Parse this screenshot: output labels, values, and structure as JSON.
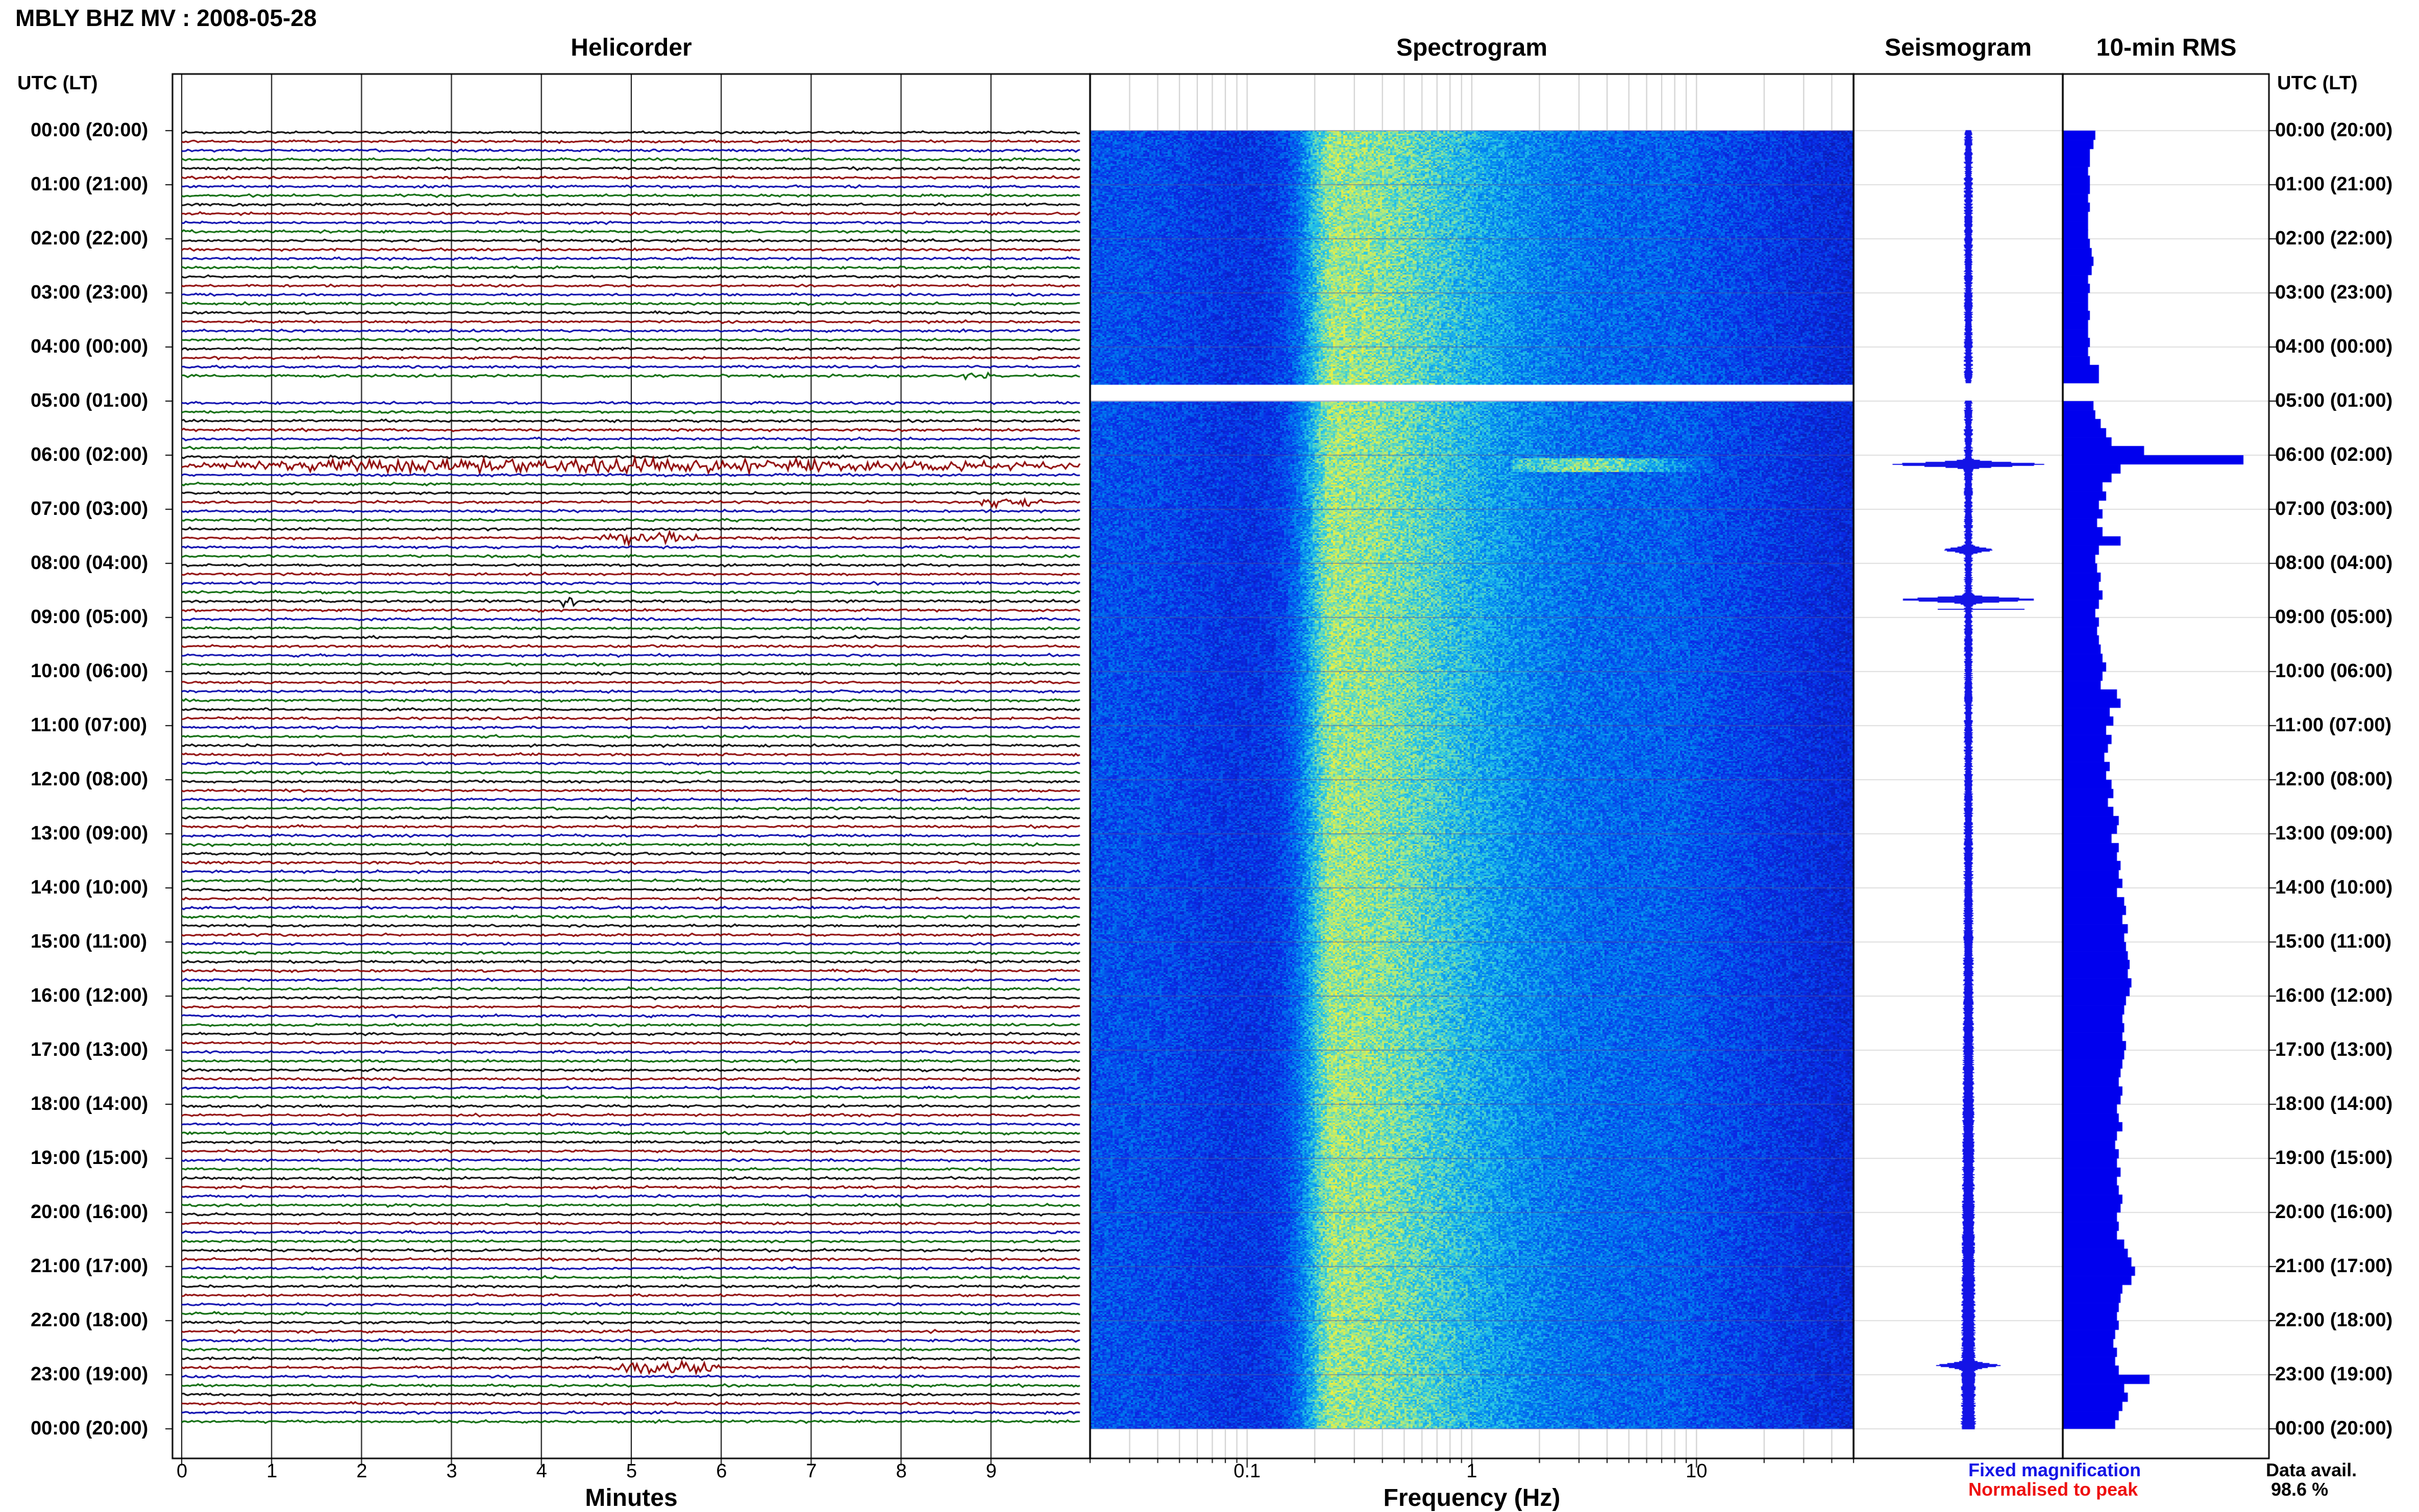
{
  "title": "MBLY BHZ MV : 2008-05-28",
  "panels": {
    "helicorder": "Helicorder",
    "spectrogram": "Spectrogram",
    "seismogram": "Seismogram",
    "rms": "10-min RMS"
  },
  "axis_headers": {
    "left": "UTC (LT)",
    "right": "UTC (LT)"
  },
  "x_labels": {
    "helicorder": "Minutes",
    "spectrogram": "Frequency (Hz)"
  },
  "legend": {
    "fixed": "Fixed magnification",
    "normalised": "Normalised to peak",
    "fixed_color": "#1414e6",
    "normalised_color": "#ee1111"
  },
  "data_avail": {
    "label": "Data avail.",
    "value": "98.6 %"
  },
  "colors": {
    "trace_cycle": [
      "#000000",
      "#8b0000",
      "#0000aa",
      "#006400"
    ],
    "bar": "#0000ee"
  },
  "chart_data": [
    {
      "type": "line",
      "name": "helicorder",
      "xlabel": "Minutes",
      "xlim": [
        0,
        10
      ],
      "x_ticks": [
        "0",
        "1",
        "2",
        "3",
        "4",
        "5",
        "6",
        "7",
        "8",
        "9"
      ],
      "y_ticks": [
        "00:00 (20:00)",
        "01:00 (21:00)",
        "02:00 (22:00)",
        "03:00 (23:00)",
        "04:00 (00:00)",
        "05:00 (01:00)",
        "06:00 (02:00)",
        "07:00 (03:00)",
        "08:00 (04:00)",
        "09:00 (05:00)",
        "10:00 (06:00)",
        "11:00 (07:00)",
        "12:00 (08:00)",
        "13:00 (09:00)",
        "14:00 (10:00)",
        "15:00 (11:00)",
        "16:00 (12:00)",
        "17:00 (13:00)",
        "18:00 (14:00)",
        "19:00 (15:00)",
        "20:00 (16:00)",
        "21:00 (17:00)",
        "22:00 (18:00)",
        "23:00 (19:00)",
        "00:00 (20:00)"
      ],
      "rows_per_hour": 6,
      "gap_hours": [
        4.67,
        5.0
      ],
      "events": [
        {
          "hour": 6.17,
          "minute_start": 0,
          "minute_end": 10,
          "strength": 5
        },
        {
          "hour": 7.5,
          "minute_start": 4.6,
          "minute_end": 5.8,
          "strength": 4
        },
        {
          "hour": 6.83,
          "minute_start": 8.8,
          "minute_end": 9.6,
          "strength": 3
        },
        {
          "hour": 8.67,
          "minute_start": 4.2,
          "minute_end": 4.4,
          "strength": 6
        },
        {
          "hour": 22.83,
          "minute_start": 4.8,
          "minute_end": 6.0,
          "strength": 4
        },
        {
          "hour": 4.5,
          "minute_start": 8.6,
          "minute_end": 9.0,
          "strength": 3
        }
      ]
    },
    {
      "type": "heatmap",
      "name": "spectrogram",
      "xlabel": "Frequency (Hz)",
      "x_scale": "log",
      "xlim": [
        0.02,
        50
      ],
      "x_ticks": [
        0.1,
        1,
        10
      ],
      "features": {
        "microseism_peak_hz": 0.25,
        "event_band": {
          "hour": 6.17,
          "f_start": 1.5,
          "f_end": 12
        }
      }
    },
    {
      "type": "line",
      "name": "seismogram",
      "events": [
        {
          "hour": 6.17,
          "amplitude": 1.0
        },
        {
          "hour": 8.67,
          "amplitude": 0.9
        },
        {
          "hour": 7.75,
          "amplitude": 0.3
        },
        {
          "hour": 22.83,
          "amplitude": 0.35
        }
      ]
    },
    {
      "type": "bar",
      "name": "10-min RMS",
      "orientation": "horizontal",
      "x": [
        0,
        0.17,
        0.33,
        0.5,
        0.67,
        0.83,
        1,
        1.17,
        1.33,
        1.5,
        1.67,
        1.83,
        2,
        2.17,
        2.33,
        2.5,
        2.67,
        2.83,
        3,
        3.17,
        3.33,
        3.5,
        3.67,
        3.83,
        4,
        4.17,
        4.33,
        4.5,
        5,
        5.17,
        5.33,
        5.5,
        5.67,
        5.83,
        6,
        6.17,
        6.33,
        6.5,
        6.67,
        6.83,
        7,
        7.17,
        7.33,
        7.5,
        7.67,
        7.83,
        8,
        8.17,
        8.33,
        8.5,
        8.67,
        8.83,
        9,
        9.17,
        9.33,
        9.5,
        9.67,
        9.83,
        10,
        10.17,
        10.33,
        10.5,
        10.67,
        10.83,
        11,
        11.17,
        11.33,
        11.5,
        11.67,
        11.83,
        12,
        12.17,
        12.33,
        12.5,
        12.67,
        12.83,
        13,
        13.17,
        13.33,
        13.5,
        13.67,
        13.83,
        14,
        14.17,
        14.33,
        14.5,
        14.67,
        14.83,
        15,
        15.17,
        15.33,
        15.5,
        15.67,
        15.83,
        16,
        16.17,
        16.33,
        16.5,
        16.67,
        16.83,
        17,
        17.17,
        17.33,
        17.5,
        17.67,
        17.83,
        18,
        18.17,
        18.33,
        18.5,
        18.67,
        18.83,
        19,
        19.17,
        19.33,
        19.5,
        19.67,
        19.83,
        20,
        20.17,
        20.33,
        20.5,
        20.67,
        20.83,
        21,
        21.17,
        21.33,
        21.5,
        21.67,
        21.83,
        22,
        22.17,
        22.33,
        22.5,
        22.67,
        22.83,
        23,
        23.17,
        23.33,
        23.5,
        23.67,
        23.83
      ],
      "values": [
        0.18,
        0.17,
        0.15,
        0.15,
        0.14,
        0.15,
        0.15,
        0.14,
        0.15,
        0.14,
        0.14,
        0.14,
        0.15,
        0.16,
        0.17,
        0.16,
        0.14,
        0.15,
        0.14,
        0.14,
        0.15,
        0.14,
        0.14,
        0.15,
        0.14,
        0.15,
        0.2,
        0.2,
        0.17,
        0.18,
        0.21,
        0.24,
        0.27,
        0.45,
        1.0,
        0.32,
        0.27,
        0.22,
        0.24,
        0.2,
        0.22,
        0.19,
        0.22,
        0.32,
        0.2,
        0.18,
        0.19,
        0.21,
        0.2,
        0.22,
        0.2,
        0.18,
        0.2,
        0.19,
        0.2,
        0.21,
        0.22,
        0.24,
        0.22,
        0.21,
        0.3,
        0.32,
        0.26,
        0.28,
        0.24,
        0.27,
        0.25,
        0.23,
        0.26,
        0.24,
        0.27,
        0.28,
        0.25,
        0.28,
        0.31,
        0.3,
        0.27,
        0.31,
        0.3,
        0.32,
        0.31,
        0.33,
        0.3,
        0.34,
        0.35,
        0.33,
        0.36,
        0.34,
        0.35,
        0.36,
        0.37,
        0.36,
        0.38,
        0.37,
        0.35,
        0.34,
        0.33,
        0.34,
        0.33,
        0.35,
        0.34,
        0.33,
        0.32,
        0.31,
        0.33,
        0.32,
        0.3,
        0.31,
        0.33,
        0.3,
        0.29,
        0.31,
        0.3,
        0.32,
        0.3,
        0.31,
        0.33,
        0.32,
        0.3,
        0.31,
        0.3,
        0.34,
        0.36,
        0.38,
        0.4,
        0.38,
        0.33,
        0.32,
        0.31,
        0.3,
        0.31,
        0.29,
        0.28,
        0.3,
        0.29,
        0.31,
        0.48,
        0.34,
        0.36,
        0.33,
        0.31,
        0.29
      ]
    }
  ]
}
